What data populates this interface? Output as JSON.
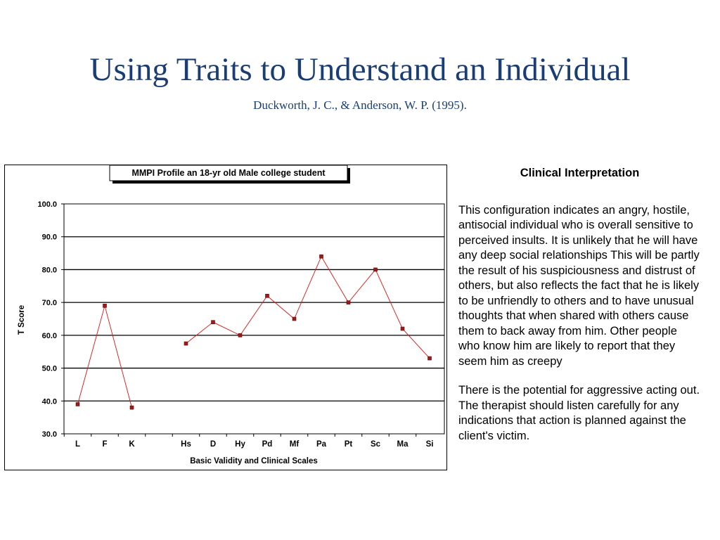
{
  "slide": {
    "title": "Using Traits to Understand an Individual",
    "subtitle": "Duckworth, J. C., & Anderson, W. P. (1995)."
  },
  "interpretation": {
    "heading": "Clinical Interpretation",
    "paragraphs": [
      "This configuration indicates an angry, hostile, antisocial individual who is overall sensitive to perceived insults.  It is unlikely that he will have any deep social relationships This will be partly the result of his suspiciousness and distrust of others, but also reflects the fact that he is likely to be unfriendly to others and to have unusual thoughts that when shared with others cause them to back away from him.  Other people who know him are likely to report that they seem him as creepy",
      "There is the potential for aggressive acting out. The therapist should listen carefully for any indications that action is planned against the client's victim."
    ]
  },
  "chart_data": {
    "type": "line",
    "title": "MMPI Profile an 18-yr old Male college student",
    "xlabel": "Basic Validity and Clinical Scales",
    "ylabel": "T Score",
    "ylim": [
      30,
      100
    ],
    "y_ticks": [
      "30.0",
      "40.0",
      "50.0",
      "60.0",
      "70.0",
      "80.0",
      "90.0",
      "100.0"
    ],
    "grid": "horizontal",
    "legend": "none",
    "line_color": "#e01010",
    "marker_color": "#a01818",
    "categories": [
      "L",
      "F",
      "K",
      "",
      "Hs",
      "D",
      "Hy",
      "Pd",
      "Mf",
      "Pa",
      "Pt",
      "Sc",
      "Ma",
      "Si"
    ],
    "values": [
      39,
      69,
      38,
      null,
      57.5,
      64,
      60,
      72,
      65,
      84,
      70,
      80,
      62,
      53
    ]
  }
}
